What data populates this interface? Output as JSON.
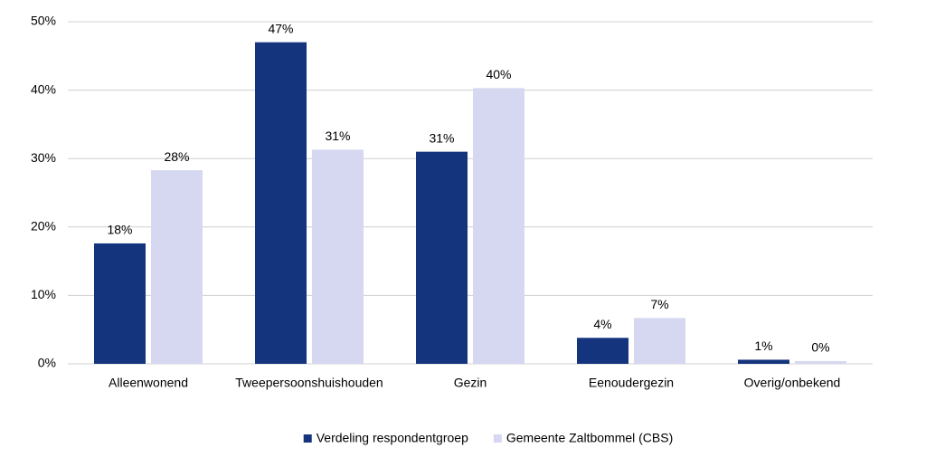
{
  "chart_data": {
    "type": "bar",
    "categories": [
      "Alleenwonend",
      "Tweepersoonshuishouden",
      "Gezin",
      "Eenoudergezin",
      "Overig/onbekend"
    ],
    "series": [
      {
        "name": "Verdeling respondentgroep",
        "color": "#14357e",
        "values": [
          17.6,
          47,
          31,
          3.8,
          0.6
        ],
        "value_labels": [
          "18%",
          "47%",
          "31%",
          "4%",
          "1%"
        ]
      },
      {
        "name": "Gemeente Zaltbommel (CBS)",
        "color": "#d5d8f0",
        "values": [
          28.3,
          31.3,
          40.3,
          6.7,
          0.4
        ],
        "value_labels": [
          "28%",
          "31%",
          "40%",
          "7%",
          "0%"
        ]
      }
    ],
    "ylim": [
      0,
      50
    ],
    "yticks": [
      {
        "value": 0,
        "label": "0%"
      },
      {
        "value": 10,
        "label": "10%"
      },
      {
        "value": 20,
        "label": "20%"
      },
      {
        "value": 30,
        "label": "30%"
      },
      {
        "value": 40,
        "label": "40%"
      },
      {
        "value": 50,
        "label": "50%"
      }
    ],
    "grid": true,
    "legend": "bottom"
  }
}
